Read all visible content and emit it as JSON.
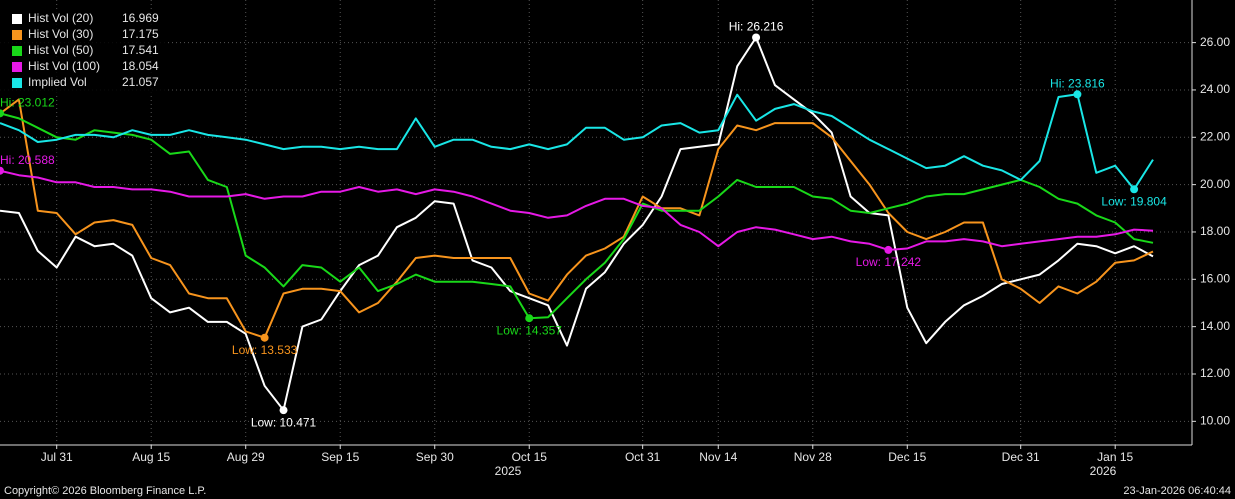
{
  "chart_data": {
    "type": "line",
    "categories": [
      null,
      null,
      null,
      "Jul 31",
      null,
      null,
      null,
      null,
      "Aug 15",
      null,
      null,
      null,
      null,
      "Aug 29",
      null,
      null,
      null,
      null,
      "Sep 15",
      null,
      null,
      null,
      null,
      "Sep 30",
      null,
      null,
      null,
      null,
      "Oct 15",
      null,
      null,
      null,
      null,
      null,
      "Oct 31",
      null,
      null,
      null,
      "Nov 14",
      null,
      null,
      null,
      null,
      "Nov 28",
      null,
      null,
      null,
      null,
      "Dec 15",
      null,
      null,
      null,
      null,
      null,
      "Dec 31",
      null,
      null,
      null,
      null,
      "Jan 15",
      null,
      null
    ],
    "x_year_labels": [
      "2025",
      "2026"
    ],
    "series": [
      {
        "name": "Hist Vol (20)",
        "color": "#ffffff",
        "hi_label": "Hi: 26.216",
        "low_label": "Low: 10.471",
        "values": [
          18.9,
          18.8,
          17.2,
          16.5,
          17.8,
          17.4,
          17.5,
          17.0,
          15.2,
          14.6,
          14.8,
          14.2,
          14.2,
          13.7,
          11.5,
          10.471,
          14.0,
          14.3,
          15.5,
          16.6,
          17.0,
          18.2,
          18.6,
          19.3,
          19.2,
          16.8,
          16.5,
          15.5,
          15.2,
          14.9,
          13.2,
          15.6,
          16.3,
          17.5,
          18.3,
          19.5,
          21.5,
          21.6,
          21.7,
          25.0,
          26.216,
          24.2,
          23.6,
          23.0,
          22.2,
          19.5,
          18.8,
          18.7,
          14.8,
          13.3,
          14.2,
          14.9,
          15.3,
          15.8,
          16.0,
          16.2,
          16.8,
          17.5,
          17.4,
          17.1,
          17.4,
          16.969
        ]
      },
      {
        "name": "Hist Vol (30)",
        "color": "#f7941d",
        "low_label": "Low: 13.533",
        "values": [
          23.0,
          23.6,
          18.9,
          18.8,
          17.9,
          18.4,
          18.5,
          18.3,
          16.9,
          16.6,
          15.4,
          15.2,
          15.2,
          13.8,
          13.533,
          15.4,
          15.6,
          15.6,
          15.5,
          14.6,
          15.0,
          15.9,
          16.9,
          17.0,
          16.9,
          16.9,
          16.9,
          16.9,
          15.4,
          15.1,
          16.2,
          17.0,
          17.3,
          17.8,
          19.5,
          19.0,
          19.0,
          18.7,
          21.5,
          22.5,
          22.3,
          22.6,
          22.6,
          22.6,
          22.0,
          21.0,
          20.0,
          18.8,
          18.0,
          17.7,
          18.0,
          18.4,
          18.4,
          16.0,
          15.6,
          15.0,
          15.7,
          15.4,
          15.9,
          16.7,
          16.8,
          17.175
        ]
      },
      {
        "name": "Hist Vol (50)",
        "color": "#19d819",
        "hi_label": "Hi: 23.012",
        "low_label": "Low: 14.357",
        "values": [
          23.012,
          22.8,
          22.4,
          22.0,
          21.9,
          22.3,
          22.2,
          22.1,
          21.9,
          21.3,
          21.4,
          20.2,
          19.9,
          17.0,
          16.5,
          15.7,
          16.6,
          16.5,
          15.9,
          16.5,
          15.5,
          15.8,
          16.2,
          15.9,
          15.9,
          15.9,
          15.8,
          15.7,
          14.357,
          14.4,
          15.2,
          16.0,
          16.7,
          17.7,
          19.2,
          18.9,
          18.9,
          18.9,
          19.5,
          20.2,
          19.9,
          19.9,
          19.9,
          19.5,
          19.4,
          18.9,
          18.8,
          19.0,
          19.2,
          19.5,
          19.6,
          19.6,
          19.8,
          20.0,
          20.2,
          19.9,
          19.4,
          19.2,
          18.7,
          18.4,
          17.7,
          17.541
        ]
      },
      {
        "name": "Hist Vol (100)",
        "color": "#e619e6",
        "hi_label": "Hi: 20.588",
        "low_label": "Low: 17.242",
        "values": [
          20.588,
          20.4,
          20.3,
          20.1,
          20.1,
          19.9,
          19.9,
          19.8,
          19.8,
          19.7,
          19.5,
          19.5,
          19.5,
          19.6,
          19.4,
          19.5,
          19.5,
          19.7,
          19.7,
          19.9,
          19.7,
          19.8,
          19.6,
          19.8,
          19.7,
          19.5,
          19.2,
          18.9,
          18.8,
          18.6,
          18.7,
          19.1,
          19.4,
          19.4,
          19.1,
          19.0,
          18.3,
          18.0,
          17.4,
          18.0,
          18.2,
          18.1,
          17.9,
          17.7,
          17.8,
          17.6,
          17.5,
          17.242,
          17.3,
          17.6,
          17.6,
          17.7,
          17.6,
          17.4,
          17.5,
          17.6,
          17.7,
          17.8,
          17.8,
          17.9,
          18.1,
          18.054
        ]
      },
      {
        "name": "Implied Vol",
        "color": "#19e6e6",
        "hi_label": "Hi: 23.816",
        "low_label": "Low: 19.804",
        "values": [
          22.6,
          22.3,
          21.8,
          21.9,
          22.1,
          22.1,
          22.0,
          22.3,
          22.1,
          22.1,
          22.3,
          22.1,
          22.0,
          21.9,
          21.7,
          21.5,
          21.6,
          21.6,
          21.5,
          21.6,
          21.5,
          21.5,
          22.8,
          21.6,
          21.9,
          21.9,
          21.6,
          21.5,
          21.7,
          21.5,
          21.7,
          22.4,
          22.4,
          21.9,
          22.0,
          22.5,
          22.6,
          22.2,
          22.3,
          23.8,
          22.7,
          23.2,
          23.4,
          23.1,
          22.9,
          22.4,
          21.9,
          21.5,
          21.1,
          20.7,
          20.8,
          21.2,
          20.8,
          20.6,
          20.2,
          21.0,
          23.7,
          23.816,
          20.5,
          20.8,
          19.804,
          21.057
        ]
      }
    ],
    "ylim": [
      9,
      27.8
    ],
    "yticks": [
      {
        "value": 10,
        "label": "10.00"
      },
      {
        "value": 12,
        "label": "12.00"
      },
      {
        "value": 14,
        "label": "14.00"
      },
      {
        "value": 16,
        "label": "16.00"
      },
      {
        "value": 18,
        "label": "18.00"
      },
      {
        "value": 20,
        "label": "20.00"
      },
      {
        "value": 22,
        "label": "22.00"
      },
      {
        "value": 24,
        "label": "24.00"
      },
      {
        "value": 26,
        "label": "26.00"
      }
    ],
    "y_axis_side": "right",
    "grid": true,
    "legend": "upper left",
    "footer_left": "Copyright© 2026 Bloomberg Finance L.P.",
    "footer_right": "23-Jan-2026 06:40:44"
  }
}
